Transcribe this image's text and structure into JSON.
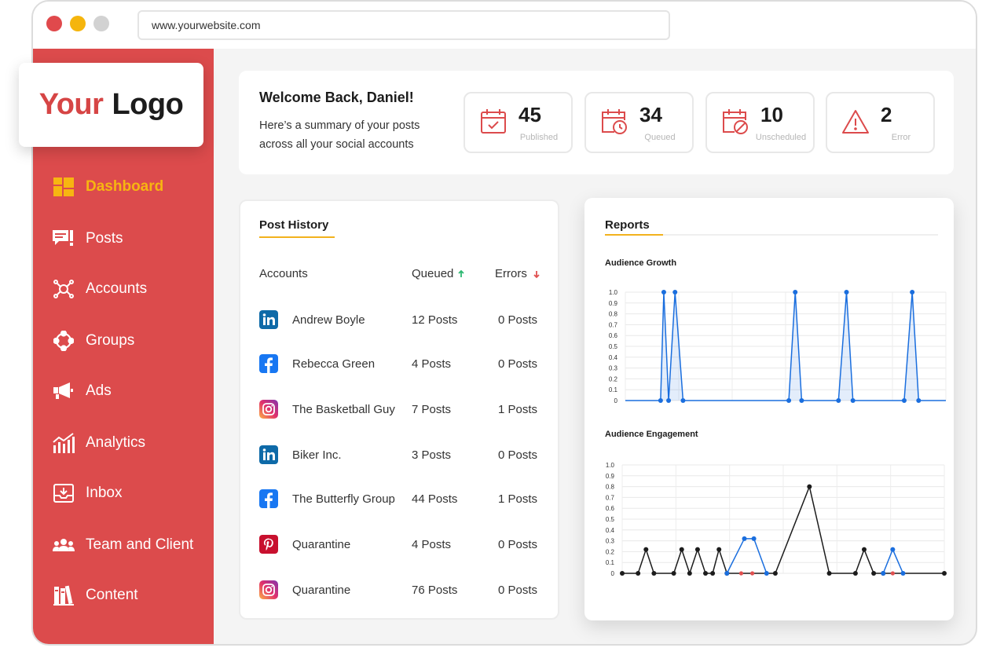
{
  "browser": {
    "url": "www.yourwebsite.com"
  },
  "logo": {
    "part1": "Your",
    "part2": "Logo"
  },
  "colors": {
    "brand_red": "#dc4b4c",
    "accent_yellow": "#f7b511",
    "series_blue": "#1a6ede",
    "series_black": "#1c1c1c"
  },
  "sidebar": {
    "items": [
      {
        "label": "Dashboard",
        "icon": "dashboard-icon",
        "active": true
      },
      {
        "label": "Posts",
        "icon": "posts-icon"
      },
      {
        "label": "Accounts",
        "icon": "accounts-icon"
      },
      {
        "label": "Groups",
        "icon": "groups-icon"
      },
      {
        "label": "Ads",
        "icon": "megaphone-icon"
      },
      {
        "label": "Analytics",
        "icon": "analytics-icon"
      },
      {
        "label": "Inbox",
        "icon": "inbox-icon"
      },
      {
        "label": "Team and Client",
        "icon": "team-icon"
      },
      {
        "label": "Content",
        "icon": "content-icon"
      }
    ]
  },
  "welcome": {
    "title": "Welcome Back, Daniel!",
    "subtitle": "Here’s a summary of your posts across all your social accounts"
  },
  "stats": [
    {
      "value": "45",
      "label": "Published",
      "icon": "calendar-check-icon"
    },
    {
      "value": "34",
      "label": "Queued",
      "icon": "calendar-clock-icon"
    },
    {
      "value": "10",
      "label": "Unscheduled",
      "icon": "calendar-blocked-icon"
    },
    {
      "value": "2",
      "label": "Error",
      "icon": "warning-icon"
    }
  ],
  "post_history": {
    "title": "Post History",
    "columns": {
      "accounts": "Accounts",
      "queued": "Queued",
      "errors": "Errors"
    },
    "rows": [
      {
        "network": "linkedin",
        "name": "Andrew Boyle",
        "queued": "12 Posts",
        "errors": "0 Posts"
      },
      {
        "network": "facebook",
        "name": "Rebecca Green",
        "queued": "4 Posts",
        "errors": "0 Posts"
      },
      {
        "network": "instagram",
        "name": "The Basketball Guy",
        "queued": "7 Posts",
        "errors": "1 Posts"
      },
      {
        "network": "linkedin",
        "name": "Biker Inc.",
        "queued": "3 Posts",
        "errors": "0 Posts"
      },
      {
        "network": "facebook",
        "name": "The Butterfly Group",
        "queued": "44 Posts",
        "errors": "1 Posts"
      },
      {
        "network": "pinterest",
        "name": "Quarantine",
        "queued": "4 Posts",
        "errors": "0 Posts"
      },
      {
        "network": "instagram",
        "name": "Quarantine",
        "queued": "76 Posts",
        "errors": "0 Posts"
      }
    ]
  },
  "reports": {
    "title": "Reports",
    "growth_title": "Audience Growth",
    "engagement_title": "Audience Engagement"
  },
  "chart_data": [
    {
      "type": "area",
      "title": "Audience Growth",
      "ylim": [
        0,
        1.0
      ],
      "yticks": [
        "1.0",
        "0.9",
        "0.8",
        "0.7",
        "0.6",
        "0.5",
        "0.4",
        "0.3",
        "0.2",
        "0.1",
        "0"
      ],
      "grid": true,
      "series": [
        {
          "color": "#1a6ede",
          "points": [
            [
              0,
              0
            ],
            [
              0.22,
              0
            ],
            [
              0.24,
              1.0
            ],
            [
              0.27,
              0
            ],
            [
              0.31,
              1.0
            ],
            [
              0.36,
              0
            ],
            [
              1.02,
              0
            ],
            [
              1.06,
              1.0
            ],
            [
              1.1,
              0
            ],
            [
              1.33,
              0
            ],
            [
              1.38,
              1.0
            ],
            [
              1.42,
              0
            ],
            [
              1.74,
              0
            ],
            [
              1.79,
              1.0
            ],
            [
              1.83,
              0
            ],
            [
              2,
              0
            ]
          ]
        }
      ]
    },
    {
      "type": "line",
      "title": "Audience Engagement",
      "ylim": [
        0,
        1.0
      ],
      "yticks": [
        "1.0",
        "0.9",
        "0.8",
        "0.7",
        "0.6",
        "0.5",
        "0.4",
        "0.3",
        "0.2",
        "0.1",
        "0"
      ],
      "grid": true,
      "series": [
        {
          "color": "#1c1c1c",
          "points": [
            [
              0,
              0
            ],
            [
              1,
              0
            ],
            [
              1.5,
              0.22
            ],
            [
              2,
              0
            ],
            [
              3.25,
              0
            ],
            [
              3.75,
              0.22
            ],
            [
              4.25,
              0
            ],
            [
              4.75,
              0.22
            ],
            [
              5.25,
              0
            ],
            [
              5.7,
              0
            ],
            [
              6.1,
              0.22
            ],
            [
              6.6,
              0
            ],
            [
              9.65,
              0
            ],
            [
              11.8,
              0.8
            ],
            [
              13.05,
              0
            ],
            [
              14.7,
              0
            ],
            [
              15.25,
              0.22
            ],
            [
              15.85,
              0
            ],
            [
              16.45,
              0
            ],
            [
              20.3,
              0
            ]
          ]
        },
        {
          "color": "#1a6ede",
          "points": [
            [
              6.6,
              0
            ],
            [
              7.7,
              0.32
            ],
            [
              8.3,
              0.32
            ],
            [
              9.1,
              0
            ]
          ]
        },
        {
          "color": "#1a6ede",
          "points": [
            [
              16.45,
              0
            ],
            [
              17.05,
              0.22
            ],
            [
              17.7,
              0
            ]
          ]
        },
        {
          "color": "#e05050",
          "points": [
            [
              7.5,
              0
            ],
            [
              8.2,
              0
            ],
            [
              17.05,
              0
            ]
          ],
          "markers_only": true
        }
      ]
    }
  ]
}
